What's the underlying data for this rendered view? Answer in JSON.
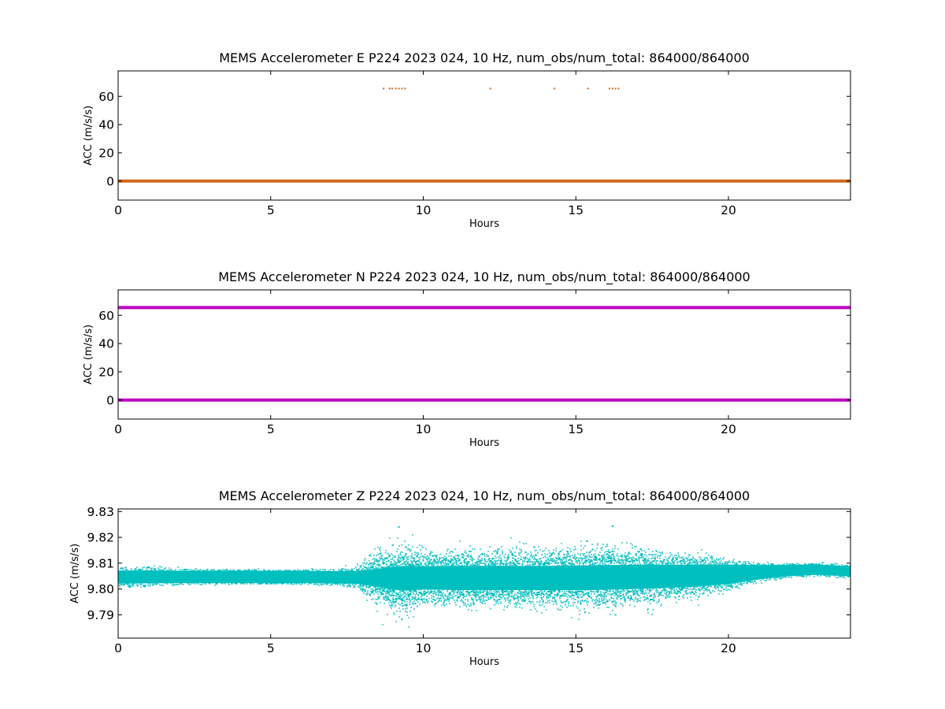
{
  "chart_data": [
    {
      "type": "scatter",
      "title": "MEMS Accelerometer E P224 2023 024, 10 Hz, num_obs/num_total: 864000/864000",
      "xlabel": "Hours",
      "ylabel": "ACC (m/s/s)",
      "xlim": [
        0,
        24
      ],
      "ylim": [
        -13.5,
        78
      ],
      "xticks": [
        0,
        5,
        10,
        15,
        20
      ],
      "yticks": [
        0,
        20,
        40,
        60
      ],
      "grid": false,
      "legend": "none",
      "color": "#d2691e",
      "series": [
        {
          "baseline": {
            "y": 0,
            "x_start": 0,
            "x_end": 24,
            "jitter": 0.2
          },
          "outliers": [
            {
              "x": 8.7,
              "y": 65.5
            },
            {
              "x": 8.9,
              "y": 65.5
            },
            {
              "x": 8.98,
              "y": 65.5
            },
            {
              "x": 9.1,
              "y": 65.5
            },
            {
              "x": 9.2,
              "y": 65.5
            },
            {
              "x": 9.3,
              "y": 65.5
            },
            {
              "x": 9.4,
              "y": 65.5
            },
            {
              "x": 12.2,
              "y": 65.5
            },
            {
              "x": 14.3,
              "y": 65.5
            },
            {
              "x": 15.4,
              "y": 65.5
            },
            {
              "x": 16.1,
              "y": 65.5
            },
            {
              "x": 16.2,
              "y": 65.5
            },
            {
              "x": 16.3,
              "y": 65.5
            },
            {
              "x": 16.4,
              "y": 65.5
            }
          ]
        }
      ]
    },
    {
      "type": "scatter",
      "title": "MEMS Accelerometer N P224 2023 024, 10 Hz, num_obs/num_total: 864000/864000",
      "xlabel": "Hours",
      "ylabel": "ACC (m/s/s)",
      "xlim": [
        0,
        24
      ],
      "ylim": [
        -13.5,
        78
      ],
      "xticks": [
        0,
        5,
        10,
        15,
        20
      ],
      "yticks": [
        0,
        20,
        40,
        60
      ],
      "grid": false,
      "legend": "none",
      "color": "#bf00bf",
      "series": [
        {
          "y": 65.5,
          "x_start": 0,
          "x_end": 24
        },
        {
          "y": 0,
          "x_start": 0,
          "x_end": 24
        }
      ]
    },
    {
      "type": "scatter",
      "title": "MEMS Accelerometer Z P224 2023 024, 10 Hz, num_obs/num_total: 864000/864000",
      "xlabel": "Hours",
      "ylabel": "ACC (m/s/s)",
      "xlim": [
        0,
        24
      ],
      "ylim": [
        9.781,
        9.831
      ],
      "xticks": [
        0,
        5,
        10,
        15,
        20
      ],
      "yticks": [
        9.79,
        9.8,
        9.81,
        9.82,
        9.83
      ],
      "ytick_labels": [
        "9.79",
        "9.80",
        "9.81",
        "9.82",
        "9.83"
      ],
      "grid": false,
      "legend": "none",
      "color": "#00bfbf",
      "band": {
        "hours": [
          0,
          1,
          2,
          3,
          4,
          5,
          6,
          7,
          7.8,
          8.5,
          9,
          9.5,
          10,
          11,
          12,
          13,
          14,
          15,
          16,
          17,
          18,
          19,
          20,
          21,
          22,
          23,
          24
        ],
        "center": [
          9.8047,
          9.8047,
          9.8047,
          9.8047,
          9.8047,
          9.8047,
          9.8047,
          9.8045,
          9.8045,
          9.8043,
          9.8042,
          9.8042,
          9.8043,
          9.8043,
          9.8043,
          9.8043,
          9.8043,
          9.8043,
          9.8045,
          9.8047,
          9.8049,
          9.8052,
          9.8057,
          9.8065,
          9.8072,
          9.8075,
          9.8068
        ],
        "half_width": [
          0.0025,
          0.0025,
          0.0024,
          0.0024,
          0.0024,
          0.0024,
          0.0024,
          0.0024,
          0.0025,
          0.0035,
          0.0045,
          0.0048,
          0.0045,
          0.0047,
          0.0047,
          0.0047,
          0.0047,
          0.0048,
          0.0048,
          0.0047,
          0.0045,
          0.0043,
          0.0038,
          0.0028,
          0.0022,
          0.002,
          0.002
        ],
        "scatter": [
          0.0007,
          0.0007,
          0.0005,
          0.0003,
          0.0002,
          0.0002,
          0.0002,
          0.0004,
          0.001,
          0.0035,
          0.004,
          0.0045,
          0.003,
          0.003,
          0.003,
          0.003,
          0.003,
          0.0032,
          0.0035,
          0.003,
          0.0025,
          0.002,
          0.0012,
          0.0005,
          0.0003,
          0.0003,
          0.0003
        ]
      },
      "extremes": [
        {
          "x": 9.2,
          "y": 9.824
        },
        {
          "x": 9.3,
          "y": 9.7883
        },
        {
          "x": 16.2,
          "y": 9.8243
        },
        {
          "x": 15.3,
          "y": 9.791
        },
        {
          "x": 16.3,
          "y": 9.79
        },
        {
          "x": 9.0,
          "y": 9.817
        }
      ]
    }
  ]
}
